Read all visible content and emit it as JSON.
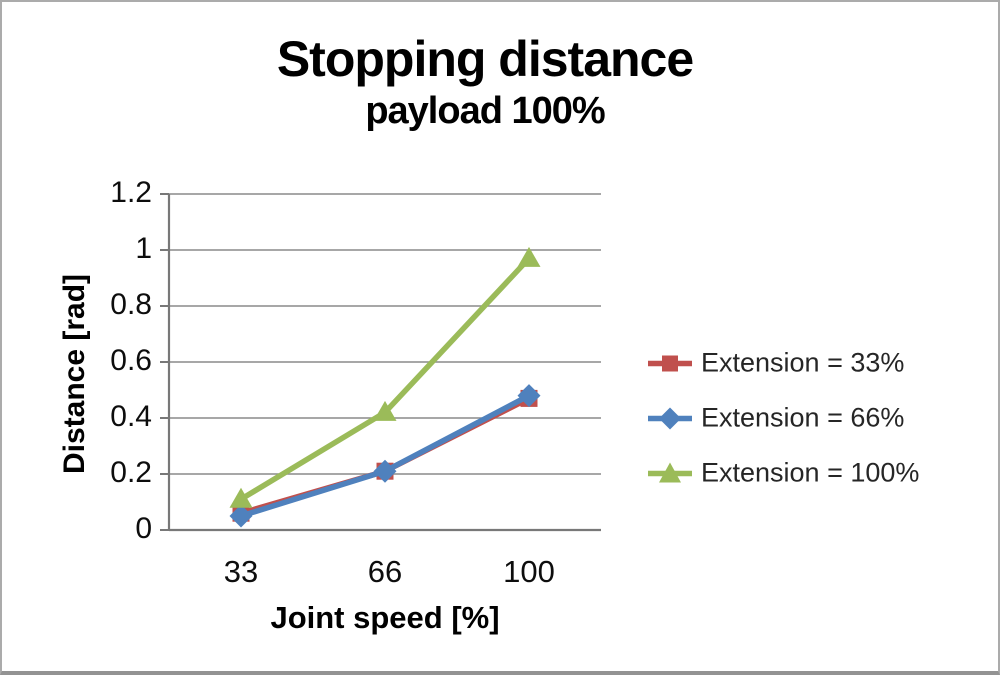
{
  "chart_data": {
    "type": "line",
    "title": "Stopping distance",
    "subtitle": "payload 100%",
    "xlabel": "Joint speed [%]",
    "ylabel": "Distance [rad]",
    "categories": [
      "33",
      "66",
      "100"
    ],
    "y_ticks": [
      0,
      0.2,
      0.4,
      0.6,
      0.8,
      1,
      1.2
    ],
    "y_tick_labels": [
      "0",
      "0.2",
      "0.4",
      "0.6",
      "0.8",
      "1",
      "1.2"
    ],
    "ylim": [
      0,
      1.2
    ],
    "grid": true,
    "legend_position": "right",
    "series": [
      {
        "name": "Extension = 33%",
        "color": "#C0504D",
        "marker": "square",
        "values": [
          0.06,
          0.21,
          0.47
        ]
      },
      {
        "name": "Extension = 66%",
        "color": "#4F81BD",
        "marker": "diamond",
        "values": [
          0.05,
          0.21,
          0.48
        ]
      },
      {
        "name": "Extension = 100%",
        "color": "#9BBB59",
        "marker": "triangle",
        "values": [
          0.11,
          0.42,
          0.97
        ]
      }
    ],
    "colors": {
      "gridline": "#8a8a8a",
      "axis": "#787878",
      "title_text": "#000000",
      "legend_text": "#262626",
      "background": "#ffffff"
    }
  }
}
